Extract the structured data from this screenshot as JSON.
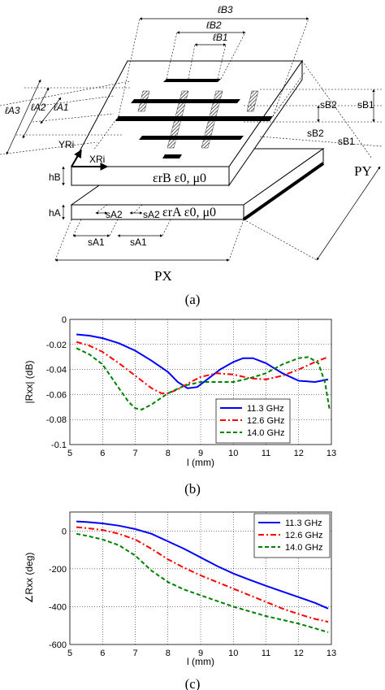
{
  "diagram": {
    "dims": {
      "lB3": "ℓB3",
      "lB2": "ℓB2",
      "lB1": "ℓB1",
      "lA3": "ℓA3",
      "lA2": "ℓA2",
      "lA1": "ℓA1",
      "sB2": "sB2",
      "sB1": "sB1",
      "sA2": "sA2",
      "sA1": "sA1",
      "hB": "hB",
      "hA": "hA",
      "PX": "PX",
      "PY": "PY",
      "XRi": "XRi",
      "YRi": "YRi"
    },
    "layer_b": "εrB ε0, μ0",
    "layer_a": "εrA ε0, μ0"
  },
  "captions": {
    "a": "(a)",
    "b": "(b)",
    "c": "(c)"
  },
  "chart_data": [
    {
      "type": "line",
      "panel": "(b)",
      "xlabel": "l (mm)",
      "ylabel": "|Rxx| (dB)",
      "xlim": [
        5,
        13
      ],
      "ylim": [
        -0.1,
        0
      ],
      "xticks": [
        5,
        6,
        7,
        8,
        9,
        10,
        11,
        12,
        13
      ],
      "yticks": [
        0,
        -0.02,
        -0.04,
        -0.06,
        -0.08,
        -0.1
      ],
      "ytick_labels": [
        "0",
        "-0.02",
        "-0.04",
        "-0.06",
        "-0.08",
        "-0.1"
      ],
      "grid": true,
      "legend": "bottom-right",
      "series": [
        {
          "name": "11.3 GHz",
          "color": "#0000ff",
          "dash": "solid",
          "x": [
            5.2,
            5.6,
            6,
            6.5,
            7,
            7.5,
            8,
            8.3,
            8.6,
            8.9,
            9.2,
            9.6,
            10,
            10.3,
            10.6,
            11,
            11.5,
            12,
            12.5,
            12.9
          ],
          "y": [
            -0.012,
            -0.013,
            -0.015,
            -0.019,
            -0.025,
            -0.033,
            -0.042,
            -0.05,
            -0.055,
            -0.054,
            -0.048,
            -0.04,
            -0.034,
            -0.031,
            -0.031,
            -0.035,
            -0.043,
            -0.049,
            -0.05,
            -0.048
          ]
        },
        {
          "name": "12.6 GHz",
          "color": "#ff0000",
          "dash": "dashdot",
          "x": [
            5.2,
            5.6,
            6,
            6.5,
            7,
            7.5,
            7.8,
            8,
            8.3,
            8.7,
            9,
            9.5,
            10,
            10.5,
            11,
            11.5,
            12,
            12.5,
            12.9
          ],
          "y": [
            -0.018,
            -0.021,
            -0.026,
            -0.035,
            -0.045,
            -0.055,
            -0.059,
            -0.059,
            -0.056,
            -0.05,
            -0.046,
            -0.043,
            -0.044,
            -0.047,
            -0.048,
            -0.045,
            -0.04,
            -0.034,
            -0.03
          ]
        },
        {
          "name": "14.0 GHz",
          "color": "#008000",
          "dash": "dashed",
          "x": [
            5.2,
            5.6,
            6,
            6.5,
            6.8,
            7,
            7.2,
            7.5,
            8,
            8.5,
            9,
            9.5,
            10,
            10.5,
            11,
            11.5,
            12,
            12.3,
            12.6,
            12.8,
            12.95
          ],
          "y": [
            -0.023,
            -0.028,
            -0.036,
            -0.055,
            -0.066,
            -0.071,
            -0.072,
            -0.068,
            -0.059,
            -0.053,
            -0.05,
            -0.05,
            -0.05,
            -0.047,
            -0.043,
            -0.036,
            -0.031,
            -0.03,
            -0.035,
            -0.05,
            -0.073
          ]
        }
      ]
    },
    {
      "type": "line",
      "panel": "(c)",
      "xlabel": "l (mm)",
      "ylabel": "∠Rxx (deg)",
      "xlim": [
        5,
        13
      ],
      "ylim": [
        -600,
        100
      ],
      "xticks": [
        5,
        6,
        7,
        8,
        9,
        10,
        11,
        12,
        13
      ],
      "yticks": [
        0,
        -200,
        -400,
        -600
      ],
      "ytick_labels": [
        "0",
        "-200",
        "-400",
        "-600"
      ],
      "grid": true,
      "legend": "top-right",
      "series": [
        {
          "name": "11.3 GHz",
          "color": "#0000ff",
          "dash": "solid",
          "x": [
            5.2,
            5.5,
            6,
            6.5,
            7,
            7.5,
            8,
            8.5,
            9,
            9.5,
            10,
            10.5,
            11,
            11.5,
            12,
            12.5,
            12.9
          ],
          "y": [
            50,
            47,
            40,
            28,
            10,
            -15,
            -55,
            -95,
            -140,
            -185,
            -225,
            -258,
            -290,
            -320,
            -350,
            -380,
            -410
          ]
        },
        {
          "name": "12.6 GHz",
          "color": "#ff0000",
          "dash": "dashdot",
          "x": [
            5.2,
            5.5,
            6,
            6.5,
            7,
            7.5,
            8,
            8.5,
            9,
            9.5,
            10,
            10.5,
            11,
            11.5,
            12,
            12.5,
            12.9
          ],
          "y": [
            20,
            15,
            5,
            -15,
            -45,
            -95,
            -150,
            -195,
            -235,
            -270,
            -305,
            -340,
            -375,
            -410,
            -440,
            -465,
            -480
          ]
        },
        {
          "name": "14.0 GHz",
          "color": "#008000",
          "dash": "dashed",
          "x": [
            5.2,
            5.5,
            6,
            6.5,
            7,
            7.5,
            8,
            8.5,
            9,
            9.5,
            10,
            10.5,
            11,
            11.5,
            12,
            12.5,
            12.9
          ],
          "y": [
            -15,
            -25,
            -45,
            -75,
            -130,
            -210,
            -270,
            -310,
            -340,
            -370,
            -400,
            -425,
            -450,
            -470,
            -490,
            -515,
            -535
          ]
        }
      ]
    }
  ]
}
